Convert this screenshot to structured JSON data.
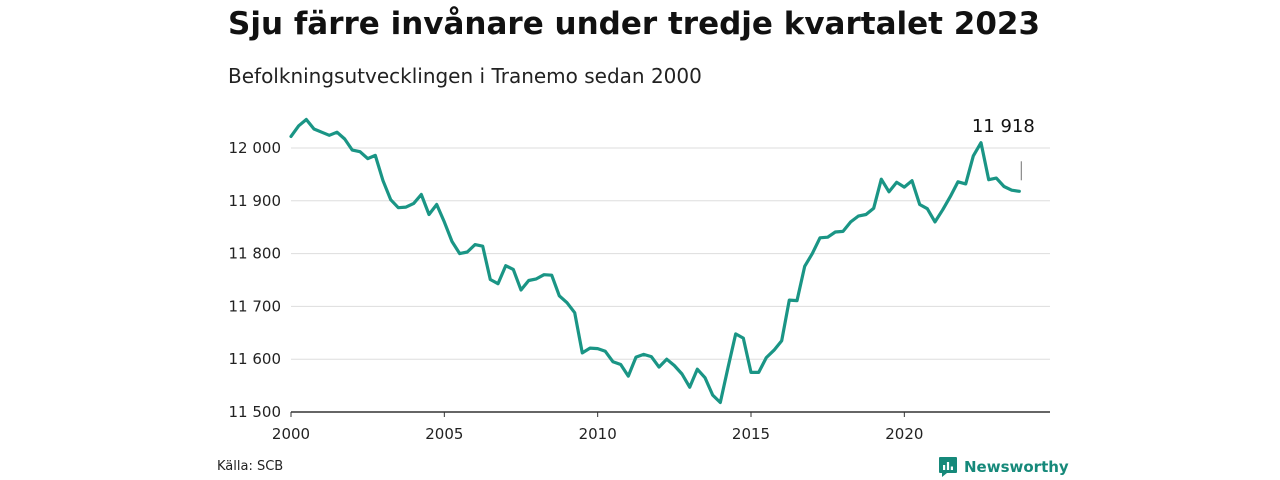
{
  "title": "Sju färre invånare under tredje kvartalet 2023",
  "subtitle": "Befolkningsutvecklingen i Tranemo sedan 2000",
  "source": "Källa: SCB",
  "brand": {
    "name": "Newsworthy",
    "icon": "chart-bubble-icon",
    "color": "#16897a"
  },
  "colors": {
    "line": "#1a9585",
    "grid": "#dddddd",
    "axis": "#333333"
  },
  "chart_data": {
    "type": "line",
    "title": "Sju färre invånare under tredje kvartalet 2023",
    "subtitle": "Befolkningsutvecklingen i Tranemo sedan 2000",
    "xlabel": "",
    "ylabel": "",
    "xlim": [
      2000,
      2024.75
    ],
    "ylim": [
      11500,
      12000
    ],
    "x_ticks": [
      2000,
      2005,
      2010,
      2015,
      2020
    ],
    "x_tick_labels": [
      "2000",
      "2005",
      "2010",
      "2015",
      "2020"
    ],
    "y_ticks": [
      11500,
      11600,
      11700,
      11800,
      11900,
      12000
    ],
    "y_tick_labels": [
      "11 500",
      "11 600",
      "11 700",
      "11 800",
      "11 900",
      "12 000"
    ],
    "grid": true,
    "annotation": {
      "text": "11 918",
      "x": 2023.75,
      "y": 11918
    },
    "series": [
      {
        "x": [
          2000.0,
          2000.25,
          2000.5,
          2000.75,
          2001.0,
          2001.25,
          2001.5,
          2001.75,
          2002.0,
          2002.25,
          2002.5,
          2002.75,
          2003.0,
          2003.25,
          2003.5,
          2003.75,
          2004.0,
          2004.25,
          2004.5,
          2004.75,
          2005.0,
          2005.25,
          2005.5,
          2005.75,
          2006.0,
          2006.25,
          2006.5,
          2006.75,
          2007.0,
          2007.25,
          2007.5,
          2007.75,
          2008.0,
          2008.25,
          2008.5,
          2008.75,
          2009.0,
          2009.25,
          2009.5,
          2009.75,
          2010.0,
          2010.25,
          2010.5,
          2010.75,
          2011.0,
          2011.25,
          2011.5,
          2011.75,
          2012.0,
          2012.25,
          2012.5,
          2012.75,
          2013.0,
          2013.25,
          2013.5,
          2013.75,
          2014.0,
          2014.25,
          2014.5,
          2014.75,
          2015.0,
          2015.25,
          2015.5,
          2015.75,
          2016.0,
          2016.25,
          2016.5,
          2016.75,
          2017.0,
          2017.25,
          2017.5,
          2017.75,
          2018.0,
          2018.25,
          2018.5,
          2018.75,
          2019.0,
          2019.25,
          2019.5,
          2019.75,
          2020.0,
          2020.25,
          2020.5,
          2020.75,
          2021.0,
          2021.25,
          2021.5,
          2021.75,
          2022.0,
          2022.25,
          2022.5,
          2022.75,
          2023.0,
          2023.25,
          2023.5,
          2023.75
        ],
        "y": [
          12022,
          12042,
          12054,
          12036,
          12030,
          12024,
          12030,
          12017,
          11996,
          11993,
          11980,
          11986,
          11938,
          11902,
          11887,
          11888,
          11895,
          11912,
          11874,
          11893,
          11860,
          11823,
          11800,
          11803,
          11817,
          11814,
          11751,
          11743,
          11777,
          11770,
          11731,
          11749,
          11752,
          11760,
          11759,
          11720,
          11707,
          11688,
          11612,
          11621,
          11620,
          11615,
          11595,
          11590,
          11568,
          11604,
          11609,
          11605,
          11585,
          11600,
          11588,
          11572,
          11547,
          11581,
          11565,
          11532,
          11518,
          11584,
          11648,
          11640,
          11575,
          11575,
          11603,
          11617,
          11635,
          11712,
          11711,
          11776,
          11800,
          11830,
          11831,
          11841,
          11842,
          11860,
          11871,
          11874,
          11886,
          11941,
          11917,
          11935,
          11926,
          11938,
          11893,
          11885,
          11860,
          11883,
          11908,
          11936,
          11932,
          11985,
          12010,
          11940,
          11943,
          11927,
          11920,
          11918
        ]
      }
    ]
  }
}
